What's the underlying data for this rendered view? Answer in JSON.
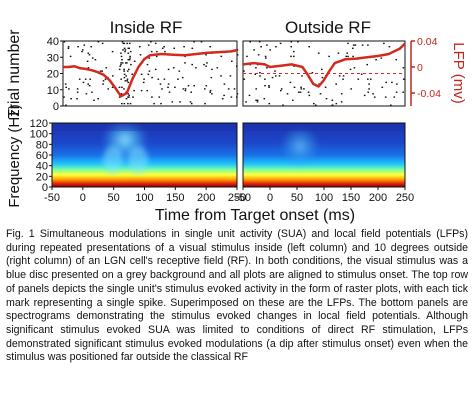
{
  "figure": {
    "panel_titles": [
      "Inside RF",
      "Outside RF"
    ],
    "raster_ylabel": "Trial number",
    "lfp_axis_label": "LFP (mv)",
    "spec_ylabel": "Frequency (Hz)",
    "xlabel": "Time from Target onset (ms)",
    "colors": {
      "lfp": "#d42a1e",
      "spike": "#111111",
      "lfp_axis": "#c0281c"
    }
  },
  "chart_data": [
    {
      "type": "scatter",
      "panel": "Inside RF raster + LFP",
      "title": "Inside RF",
      "ylabel": "Trial number",
      "xlim": [
        -50,
        250
      ],
      "ylim": [
        0,
        40
      ],
      "yticks": [
        0,
        10,
        20,
        30,
        40
      ],
      "lfp_ylim": [
        -0.06,
        0.04
      ],
      "lfp": {
        "x": [
          -50,
          -40,
          -30,
          -20,
          -10,
          0,
          10,
          20,
          30,
          40,
          50,
          60,
          70,
          80,
          90,
          100,
          120,
          140,
          160,
          180,
          200,
          220,
          240,
          250
        ],
        "y": [
          0.0,
          0.0,
          0.001,
          -0.002,
          -0.003,
          -0.005,
          -0.008,
          -0.012,
          -0.02,
          -0.032,
          -0.045,
          -0.04,
          -0.018,
          0.0,
          0.012,
          0.018,
          0.02,
          0.019,
          0.018,
          0.02,
          0.022,
          0.023,
          0.024,
          0.026
        ]
      }
    },
    {
      "type": "scatter",
      "panel": "Outside RF raster + LFP",
      "title": "Outside RF",
      "xlim": [
        -50,
        250
      ],
      "ylim": [
        0,
        40
      ],
      "lfp_ylim": [
        -0.06,
        0.04
      ],
      "lfp_yticks": [
        0.04,
        0,
        -0.04
      ],
      "lfp_yticklabels": [
        "0.04",
        "0",
        "-0.04"
      ],
      "lfp": {
        "x": [
          -50,
          -30,
          -10,
          0,
          20,
          40,
          60,
          70,
          80,
          90,
          100,
          110,
          120,
          140,
          160,
          180,
          200,
          220,
          240,
          250
        ],
        "y": [
          0.004,
          0.006,
          0.004,
          0.0,
          0.002,
          0.004,
          0.0,
          -0.012,
          -0.026,
          -0.03,
          -0.02,
          -0.006,
          0.006,
          0.012,
          0.013,
          0.015,
          0.017,
          0.02,
          0.028,
          0.036
        ]
      }
    },
    {
      "type": "heatmap",
      "panel": "Inside RF spectrogram",
      "ylabel": "Frequency (Hz)",
      "xlim": [
        -50,
        250
      ],
      "ylim": [
        0,
        120
      ],
      "yticks": [
        0,
        20,
        40,
        60,
        80,
        100,
        120
      ],
      "xticks": [
        -50,
        0,
        50,
        100,
        150,
        200,
        250
      ]
    },
    {
      "type": "heatmap",
      "panel": "Outside RF spectrogram",
      "xlim": [
        -50,
        250
      ],
      "ylim": [
        0,
        120
      ],
      "xticks": [
        -50,
        0,
        50,
        100,
        150,
        200,
        250
      ]
    }
  ],
  "caption": "Fig. 1 Simultaneous modulations in single unit activity (SUA) and local field potentials (LFPs) during repeated presentations of a visual stimulus inside (left column) and 10 degrees outside (right column) of an LGN cell's receptive field (RF).  In both conditions, the visual stimulus was a blue disc presented on a grey background and all plots are aligned to stimulus onset. The top row of panels depicts the single unit's stimulus evoked activity in the form of raster plots, with each tick mark representing a single spike.  Superimposed on these are the LFPs. The bottom panels are spectrograms demonstrating the stimulus evoked changes in local field potentials.  Although significant stimulus evoked SUA was limited to conditions of direct RF stimulation, LFPs demonstrated significant stimulus evoked modulations (a dip after stimulus onset) even when the stimulus was positioned far outside the classical RF"
}
